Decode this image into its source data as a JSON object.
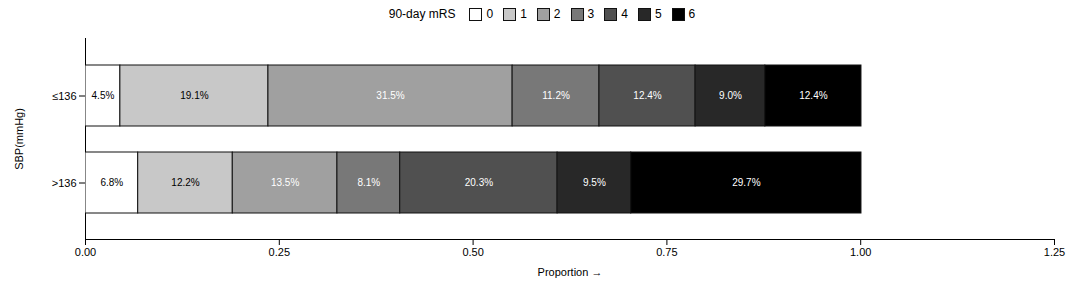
{
  "chart_data": {
    "type": "bar",
    "orientation": "horizontal",
    "stacked": true,
    "data_labels": true,
    "legend": "top",
    "grid": false,
    "legend_title": "90-day mRS",
    "xlabel": "Proportion",
    "ylabel": "SBP(mmHg)",
    "categories": [
      "≤136",
      ">136"
    ],
    "series": [
      {
        "name": "0",
        "color": "#FFFFFF",
        "values": [
          0.045,
          0.068
        ],
        "value_labels": [
          "4.5%",
          "6.8%"
        ]
      },
      {
        "name": "1",
        "color": "#C8C8C8",
        "values": [
          0.191,
          0.122
        ],
        "value_labels": [
          "19.1%",
          "12.2%"
        ]
      },
      {
        "name": "2",
        "color": "#A0A0A0",
        "values": [
          0.315,
          0.135
        ],
        "value_labels": [
          "31.5%",
          "13.5%"
        ]
      },
      {
        "name": "3",
        "color": "#787878",
        "values": [
          0.112,
          0.081
        ],
        "value_labels": [
          "11.2%",
          "8.1%"
        ]
      },
      {
        "name": "4",
        "color": "#505050",
        "values": [
          0.124,
          0.203
        ],
        "value_labels": [
          "12.4%",
          "20.3%"
        ]
      },
      {
        "name": "5",
        "color": "#282828",
        "values": [
          0.09,
          0.095
        ],
        "value_labels": [
          "9.0%",
          "9.5%"
        ]
      },
      {
        "name": "6",
        "color": "#000000",
        "values": [
          0.124,
          0.297
        ],
        "value_labels": [
          "12.4%",
          "29.7%"
        ]
      }
    ],
    "xlim": [
      0,
      1.25
    ],
    "xticks": [
      {
        "value": 0,
        "label": "0.00"
      },
      0.25,
      {
        "value": 0.5,
        "label": "0.50"
      },
      0.75,
      {
        "value": 1,
        "label": "1.00"
      },
      1.25
    ]
  }
}
